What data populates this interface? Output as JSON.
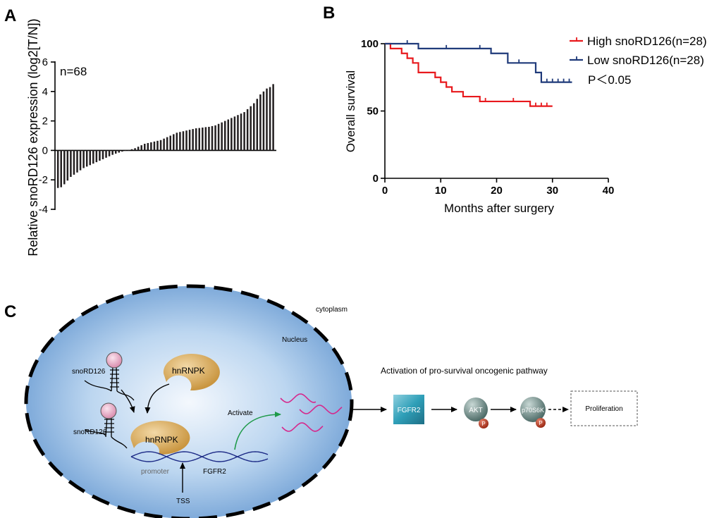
{
  "panels": {
    "a": "A",
    "b": "B",
    "c": "C"
  },
  "chart_data": [
    {
      "type": "bar",
      "panel": "A",
      "ylabel": "Relative snoRD126 expression (log2[T/N])",
      "annotation": "n=68",
      "ylim": [
        -4,
        6
      ],
      "yticks": [
        -4,
        -2,
        0,
        2,
        4,
        6
      ],
      "ytick_labels": [
        "-4",
        "-2",
        "0",
        "2",
        "4",
        "6"
      ],
      "values": [
        -2.55,
        -2.5,
        -2.3,
        -2.05,
        -1.8,
        -1.65,
        -1.5,
        -1.35,
        -1.2,
        -1.1,
        -1.0,
        -0.9,
        -0.8,
        -0.7,
        -0.6,
        -0.5,
        -0.4,
        -0.3,
        -0.22,
        -0.15,
        -0.08,
        -0.03,
        0.02,
        0.08,
        0.15,
        0.25,
        0.35,
        0.45,
        0.5,
        0.55,
        0.6,
        0.65,
        0.7,
        0.8,
        0.9,
        1.0,
        1.1,
        1.2,
        1.25,
        1.3,
        1.35,
        1.4,
        1.45,
        1.5,
        1.52,
        1.55,
        1.58,
        1.6,
        1.65,
        1.7,
        1.8,
        1.9,
        2.0,
        2.1,
        2.2,
        2.3,
        2.4,
        2.5,
        2.6,
        2.8,
        3.0,
        3.2,
        3.5,
        3.8,
        4.0,
        4.2,
        4.3,
        4.5
      ]
    },
    {
      "type": "line",
      "panel": "B",
      "subtype": "kaplan-meier",
      "xlabel": "Months after surgery",
      "ylabel": "Overall survival",
      "xlim": [
        0,
        40
      ],
      "ylim": [
        0,
        100
      ],
      "xticks": [
        0,
        10,
        20,
        30,
        40
      ],
      "xtick_labels": [
        "0",
        "10",
        "20",
        "30",
        "40"
      ],
      "yticks": [
        0,
        50,
        100
      ],
      "ytick_labels": [
        "0",
        "50",
        "100"
      ],
      "annotation": "P＜0.05",
      "series": [
        {
          "name": "High snoRD126(n=28)",
          "color": "#e8191d",
          "steps": [
            [
              0,
              100
            ],
            [
              1,
              96.4
            ],
            [
              3,
              92.8
            ],
            [
              4,
              89.2
            ],
            [
              5,
              85.7
            ],
            [
              6,
              78.6
            ],
            [
              9,
              75.0
            ],
            [
              10,
              71.4
            ],
            [
              11,
              67.8
            ],
            [
              12,
              64.3
            ],
            [
              14,
              60.7
            ],
            [
              17,
              57.1
            ],
            [
              26,
              53.6
            ],
            [
              30,
              53.6
            ]
          ],
          "censored": [
            [
              18,
              57.1
            ],
            [
              23,
              57.1
            ],
            [
              27,
              53.6
            ],
            [
              28,
              53.6
            ],
            [
              29,
              53.6
            ]
          ]
        },
        {
          "name": "Low snoRD126(n=28)",
          "color": "#1f3a7a",
          "steps": [
            [
              0,
              100
            ],
            [
              6,
              96.4
            ],
            [
              19,
              92.8
            ],
            [
              22,
              85.7
            ],
            [
              27,
              78.6
            ],
            [
              28,
              71.4
            ],
            [
              33.5,
              71.4
            ]
          ],
          "censored": [
            [
              4,
              100
            ],
            [
              11,
              96.4
            ],
            [
              17,
              96.4
            ],
            [
              24,
              85.7
            ],
            [
              29,
              71.4
            ],
            [
              30,
              71.4
            ],
            [
              31,
              71.4
            ],
            [
              32,
              71.4
            ],
            [
              33,
              71.4
            ]
          ]
        }
      ]
    }
  ],
  "diagram": {
    "cytoplasm": "cytoplasm",
    "nucleus": "Nucleus",
    "snord126_1": "snoRD126",
    "snord126_2": "snoRD126",
    "hnrnpk_free": "hnRNPK",
    "hnrnpk_bound": "hnRNPK",
    "activate": "Activate",
    "promoter": "promoter",
    "fgfr2_gene": "FGFR2",
    "tss": "TSS",
    "pathway_title": "Activation of pro-survival oncogenic pathway",
    "fgfr2_box": "FGFR2",
    "akt": "AKT",
    "p70s6k": "p70S6K",
    "phospho": "P",
    "proliferation": "Proliferation",
    "colors": {
      "hnrnpk": "#d9a85a",
      "rna": "#d6288c",
      "dna": "#1c2a86",
      "arrow_green": "#1f9a4a",
      "fgfr2_box": "#2f9fb8",
      "kinase": "#6d8a86",
      "phospho": "#b3361f"
    }
  }
}
